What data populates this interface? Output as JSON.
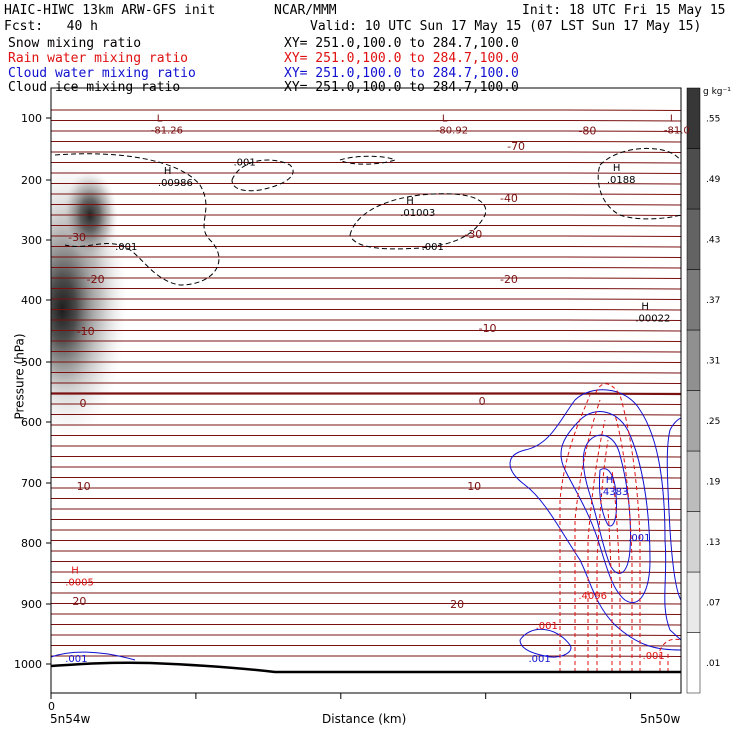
{
  "header": {
    "model": "HAIC-HIWC 13km ARW-GFS init",
    "center": "NCAR/MMM",
    "init": "Init: 18 UTC Fri 15 May 15",
    "fcst": "Fcst:   40 h",
    "valid": "Valid: 10 UTC Sun 17 May 15 (07 LST Sun 17 May 15)"
  },
  "fields": [
    {
      "label": "Snow mixing ratio",
      "xy": "XY= 251.0,100.0 to 284.7,100.0",
      "color": "#000000"
    },
    {
      "label": "Rain water mixing ratio",
      "xy": "XY= 251.0,100.0 to 284.7,100.0",
      "color": "#e01010"
    },
    {
      "label": "Cloud water mixing ratio",
      "xy": "XY= 251.0,100.0 to 284.7,100.0",
      "color": "#1010d0"
    },
    {
      "label": "Cloud ice mixing ratio",
      "xy": "XY= 251.0,100.0 to 284.7,100.0",
      "color": "#000000"
    }
  ],
  "chart_data": {
    "type": "contour",
    "ylabel": "Pressure (hPa)",
    "xlabel": "Distance (km)",
    "ylim": [
      1050,
      60
    ],
    "xlim": [
      0,
      442
    ],
    "yticks": [
      100,
      200,
      300,
      400,
      500,
      600,
      700,
      800,
      900,
      1000
    ],
    "x_tick_label": "0",
    "x_left_label": "5n54w",
    "x_right_label": "5n50w",
    "colorbar": {
      "unit": "g kg⁻¹",
      "labels": [
        ".01",
        ".07",
        ".13",
        ".19",
        ".25",
        ".31",
        ".37",
        ".43",
        ".49",
        ".55"
      ]
    },
    "temperature_labels": [
      {
        "text": "-70",
        "p": 145,
        "x": 320
      },
      {
        "text": "-80",
        "p": 120,
        "x": 370
      },
      {
        "text": "-40",
        "p": 230,
        "x": 315
      },
      {
        "text": "-30",
        "p": 290,
        "x": 290
      },
      {
        "text": "-30",
        "p": 295,
        "x": 12
      },
      {
        "text": "-20",
        "p": 365,
        "x": 315
      },
      {
        "text": "-20",
        "p": 365,
        "x": 25
      },
      {
        "text": "-10",
        "p": 445,
        "x": 300
      },
      {
        "text": "-10",
        "p": 450,
        "x": 18
      },
      {
        "text": "0",
        "p": 565,
        "x": 300
      },
      {
        "text": "0",
        "p": 568,
        "x": 20
      },
      {
        "text": "10",
        "p": 705,
        "x": 292
      },
      {
        "text": "10",
        "p": 705,
        "x": 18
      },
      {
        "text": "20",
        "p": 900,
        "x": 280
      },
      {
        "text": "20",
        "p": 895,
        "x": 15
      }
    ],
    "extrema_labels": [
      {
        "kind": "L",
        "value": "-81.26",
        "p": 115,
        "x": 70
      },
      {
        "kind": "L",
        "value": "-80.92",
        "p": 115,
        "x": 270
      },
      {
        "kind": "L",
        "value": "-81.0",
        "p": 115,
        "x": 430
      },
      {
        "kind": "H",
        "value": ".00986",
        "p": 200,
        "x": 75
      },
      {
        "kind": "H",
        "value": ".01003",
        "p": 250,
        "x": 245
      },
      {
        "kind": "H",
        "value": ".0188",
        "p": 195,
        "x": 390
      },
      {
        "kind": "H",
        "value": ".00022",
        "p": 425,
        "x": 410
      },
      {
        "kind": "H",
        "value": ".4383",
        "p": 710,
        "x": 385
      },
      {
        "kind": "H",
        "value": ".0005",
        "p": 860,
        "x": 10
      }
    ],
    "contour_value_labels": [
      {
        "text": ".001",
        "p": 170,
        "x": 128,
        "color": "#000000"
      },
      {
        "text": ".001",
        "p": 310,
        "x": 45,
        "color": "#000000"
      },
      {
        "text": ".001",
        "p": 310,
        "x": 260,
        "color": "#000000"
      },
      {
        "text": ".001",
        "p": 790,
        "x": 405,
        "color": "#1010d0"
      },
      {
        "text": ".4096",
        "p": 885,
        "x": 370,
        "color": "#e01010"
      },
      {
        "text": ".001",
        "p": 935,
        "x": 340,
        "color": "#e01010"
      },
      {
        "text": ".001",
        "p": 985,
        "x": 415,
        "color": "#e01010"
      },
      {
        "text": ".001",
        "p": 990,
        "x": 335,
        "color": "#1010d0"
      },
      {
        "text": ".001",
        "p": 990,
        "x": 10,
        "color": "#1010d0"
      }
    ]
  }
}
